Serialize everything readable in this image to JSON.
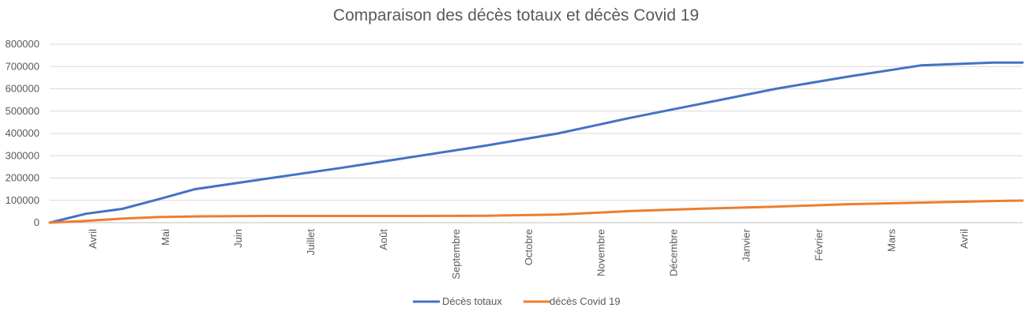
{
  "chart_data": {
    "type": "line",
    "title": "Comparaison des décès totaux et décès Covid 19",
    "xlabel": "",
    "ylabel": "",
    "ylim": [
      0,
      800000
    ],
    "yticks": [
      "0",
      "100000",
      "200000",
      "300000",
      "400000",
      "500000",
      "600000",
      "700000",
      "800000"
    ],
    "categories": [
      "Avril",
      "Mai",
      "Juin",
      "Juillet",
      "Août",
      "Septembre",
      "Octobre",
      "Novembre",
      "Décembre",
      "Janvier",
      "Février",
      "Mars",
      "Avril"
    ],
    "x": [
      0,
      0.5,
      1,
      1.5,
      2,
      3,
      4,
      5,
      6,
      7,
      8,
      9,
      10,
      11,
      12,
      13,
      13.4
    ],
    "series": [
      {
        "name": "Décès totaux",
        "color": "#4472C4",
        "values": [
          0,
          40000,
          62000,
          105000,
          150000,
          198000,
          245000,
          295000,
          345000,
          400000,
          470000,
          535000,
          600000,
          655000,
          705000,
          718000,
          718000
        ]
      },
      {
        "name": "décès Covid 19",
        "color": "#ED7D31",
        "values": [
          0,
          8000,
          18000,
          25000,
          28000,
          30000,
          30000,
          30000,
          31000,
          36000,
          52000,
          63000,
          72000,
          83000,
          90000,
          97000,
          99000
        ]
      }
    ],
    "grid": true,
    "legend_position": "bottom"
  }
}
